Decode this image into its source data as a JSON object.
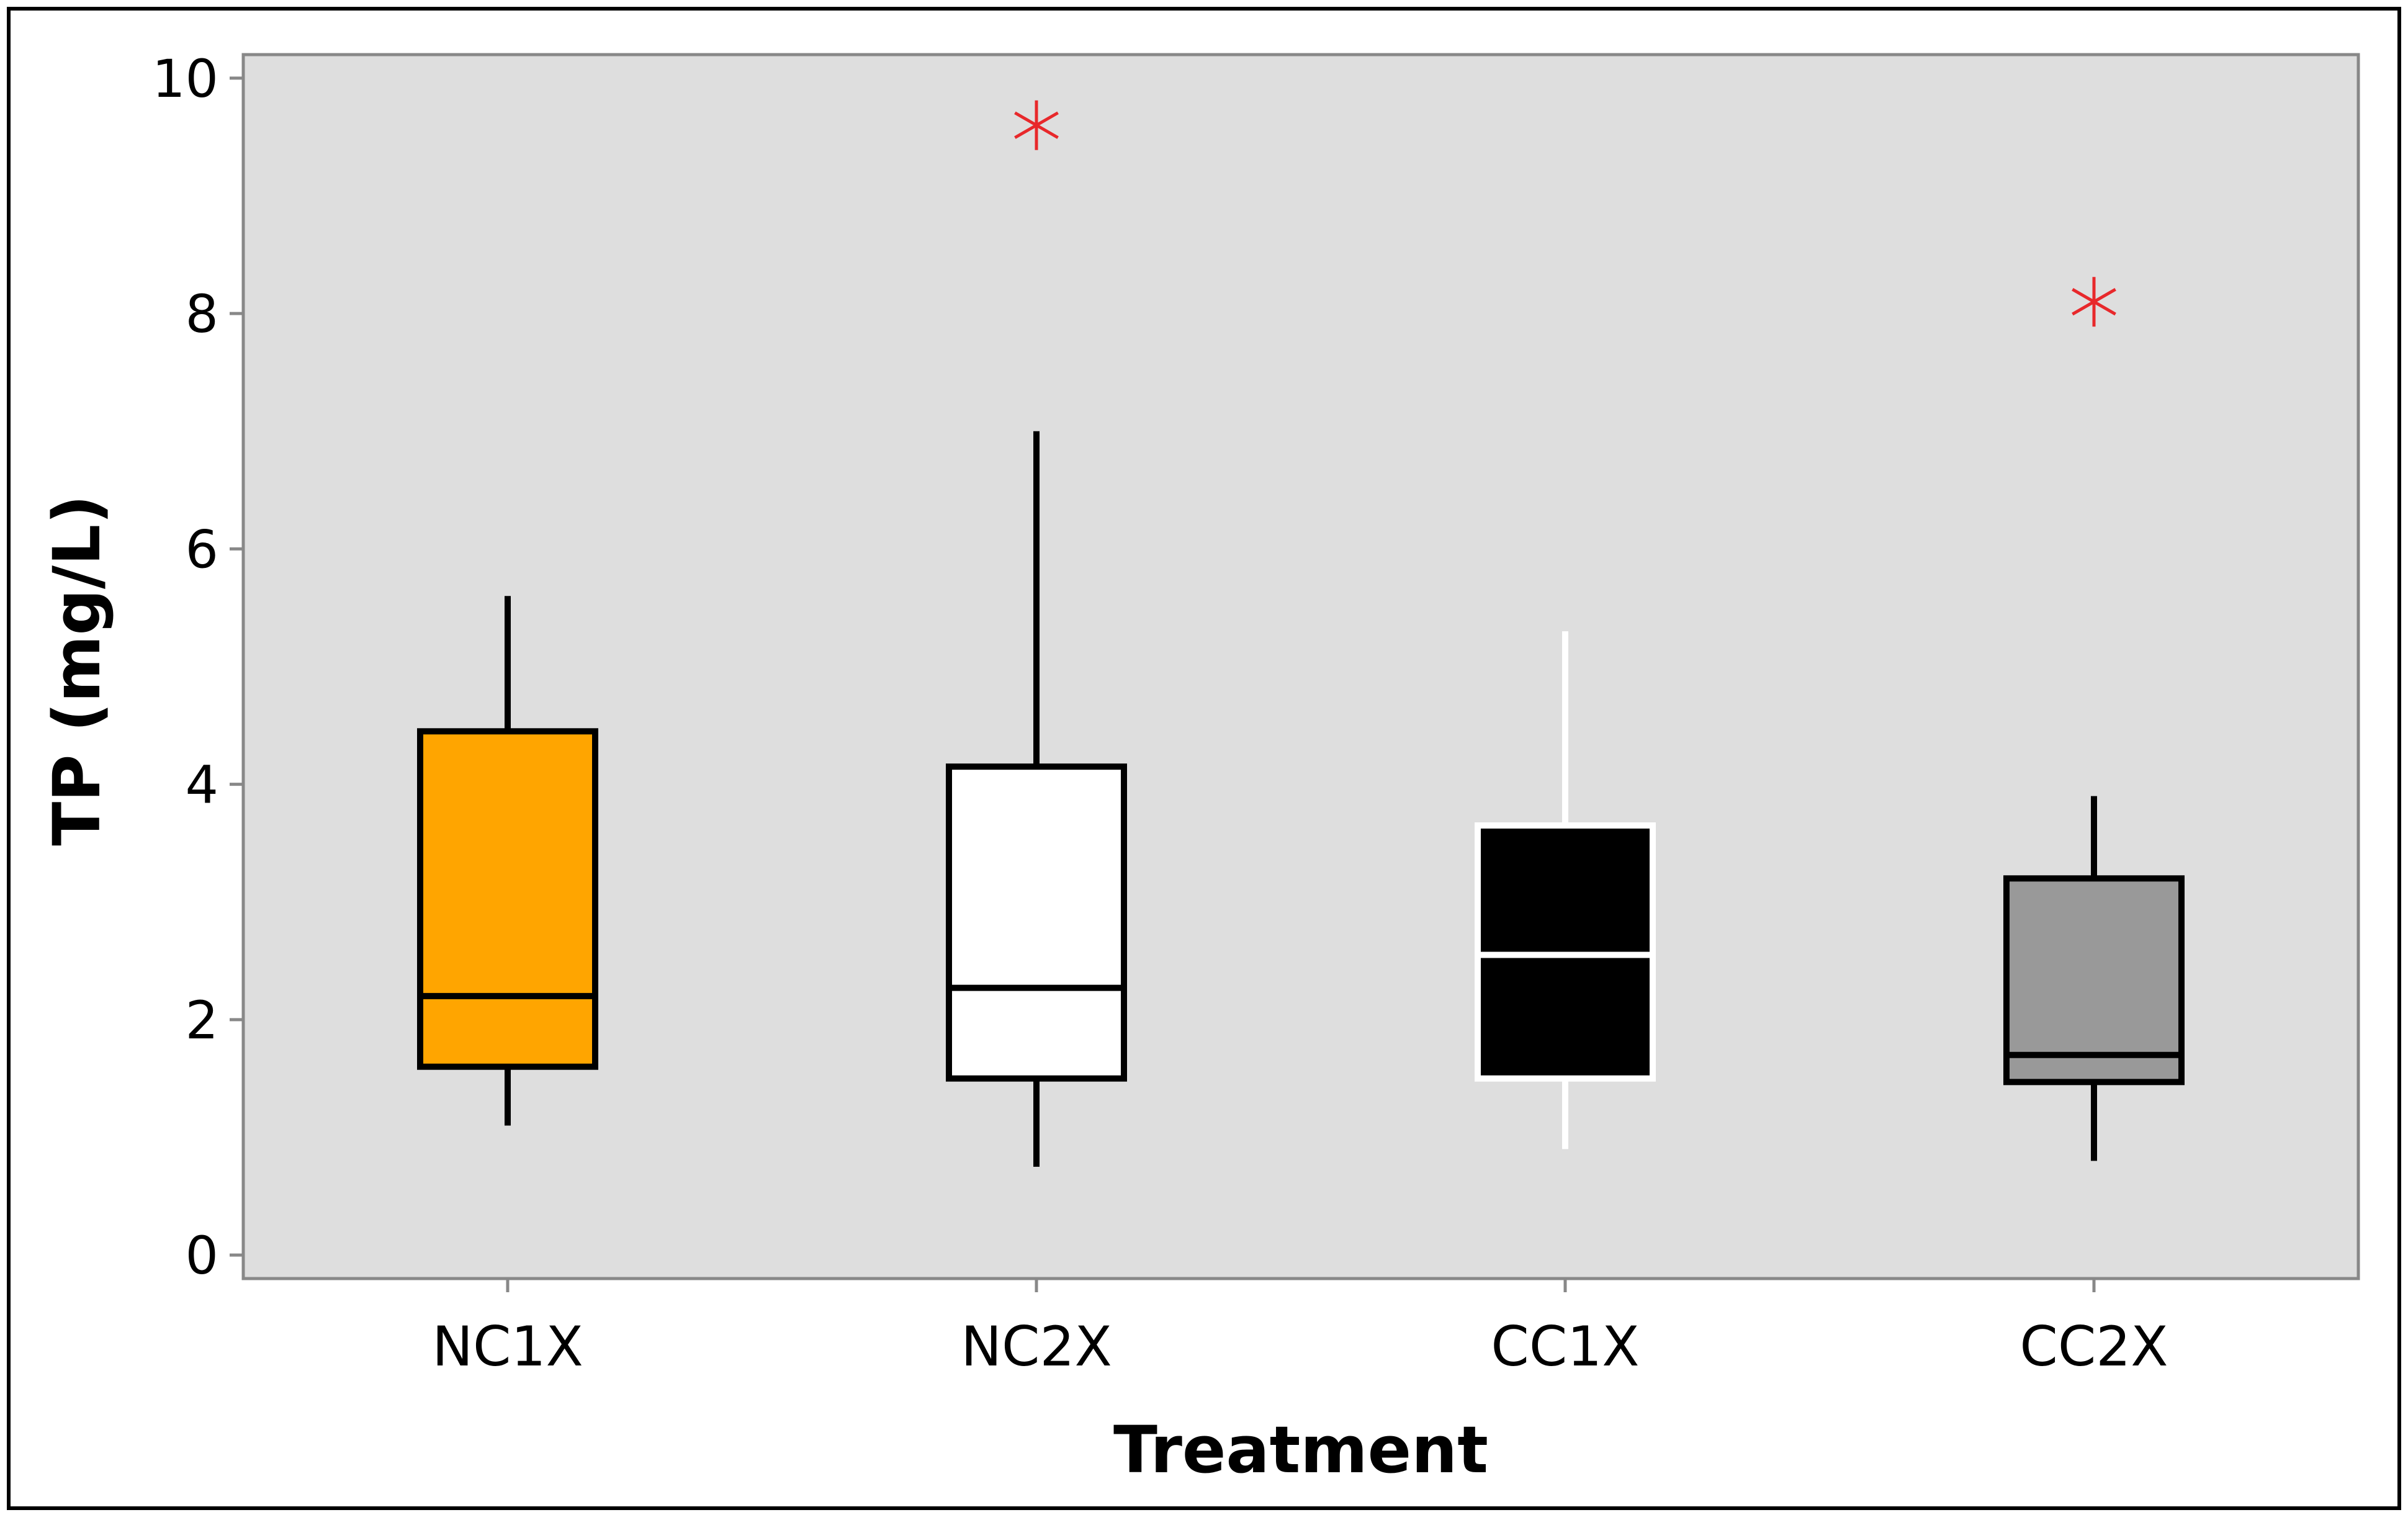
{
  "chart_data": {
    "type": "boxplot",
    "title": "",
    "xlabel": "Treatment",
    "ylabel": "TP (mg/L)",
    "ylim": [
      -0.2,
      10.2
    ],
    "yticks": [
      0,
      2,
      4,
      6,
      8,
      10
    ],
    "grid": false,
    "categories": [
      "NC1X",
      "NC2X",
      "CC1X",
      "CC2X"
    ],
    "boxes": [
      {
        "name": "NC1X",
        "whisker_low": 1.1,
        "q1": 1.6,
        "median": 2.2,
        "q3": 4.45,
        "whisker_high": 5.6,
        "outliers": [],
        "fill": "#FFA500",
        "line": "#000000"
      },
      {
        "name": "NC2X",
        "whisker_low": 0.75,
        "q1": 1.5,
        "median": 2.27,
        "q3": 4.15,
        "whisker_high": 7.0,
        "outliers": [
          9.6
        ],
        "fill": "#FFFFFF",
        "line": "#000000"
      },
      {
        "name": "CC1X",
        "whisker_low": 0.9,
        "q1": 1.5,
        "median": 2.55,
        "q3": 3.65,
        "whisker_high": 5.3,
        "outliers": [],
        "fill": "#000000",
        "line": "#FFFFFF"
      },
      {
        "name": "CC2X",
        "whisker_low": 0.8,
        "q1": 1.47,
        "median": 1.7,
        "q3": 3.2,
        "whisker_high": 3.9,
        "outliers": [
          8.1
        ],
        "fill": "#999999",
        "line": "#000000"
      }
    ],
    "colors": {
      "plot_background": "#DEDEDE",
      "axis": "#888888",
      "outlier": "#E8282B"
    }
  }
}
